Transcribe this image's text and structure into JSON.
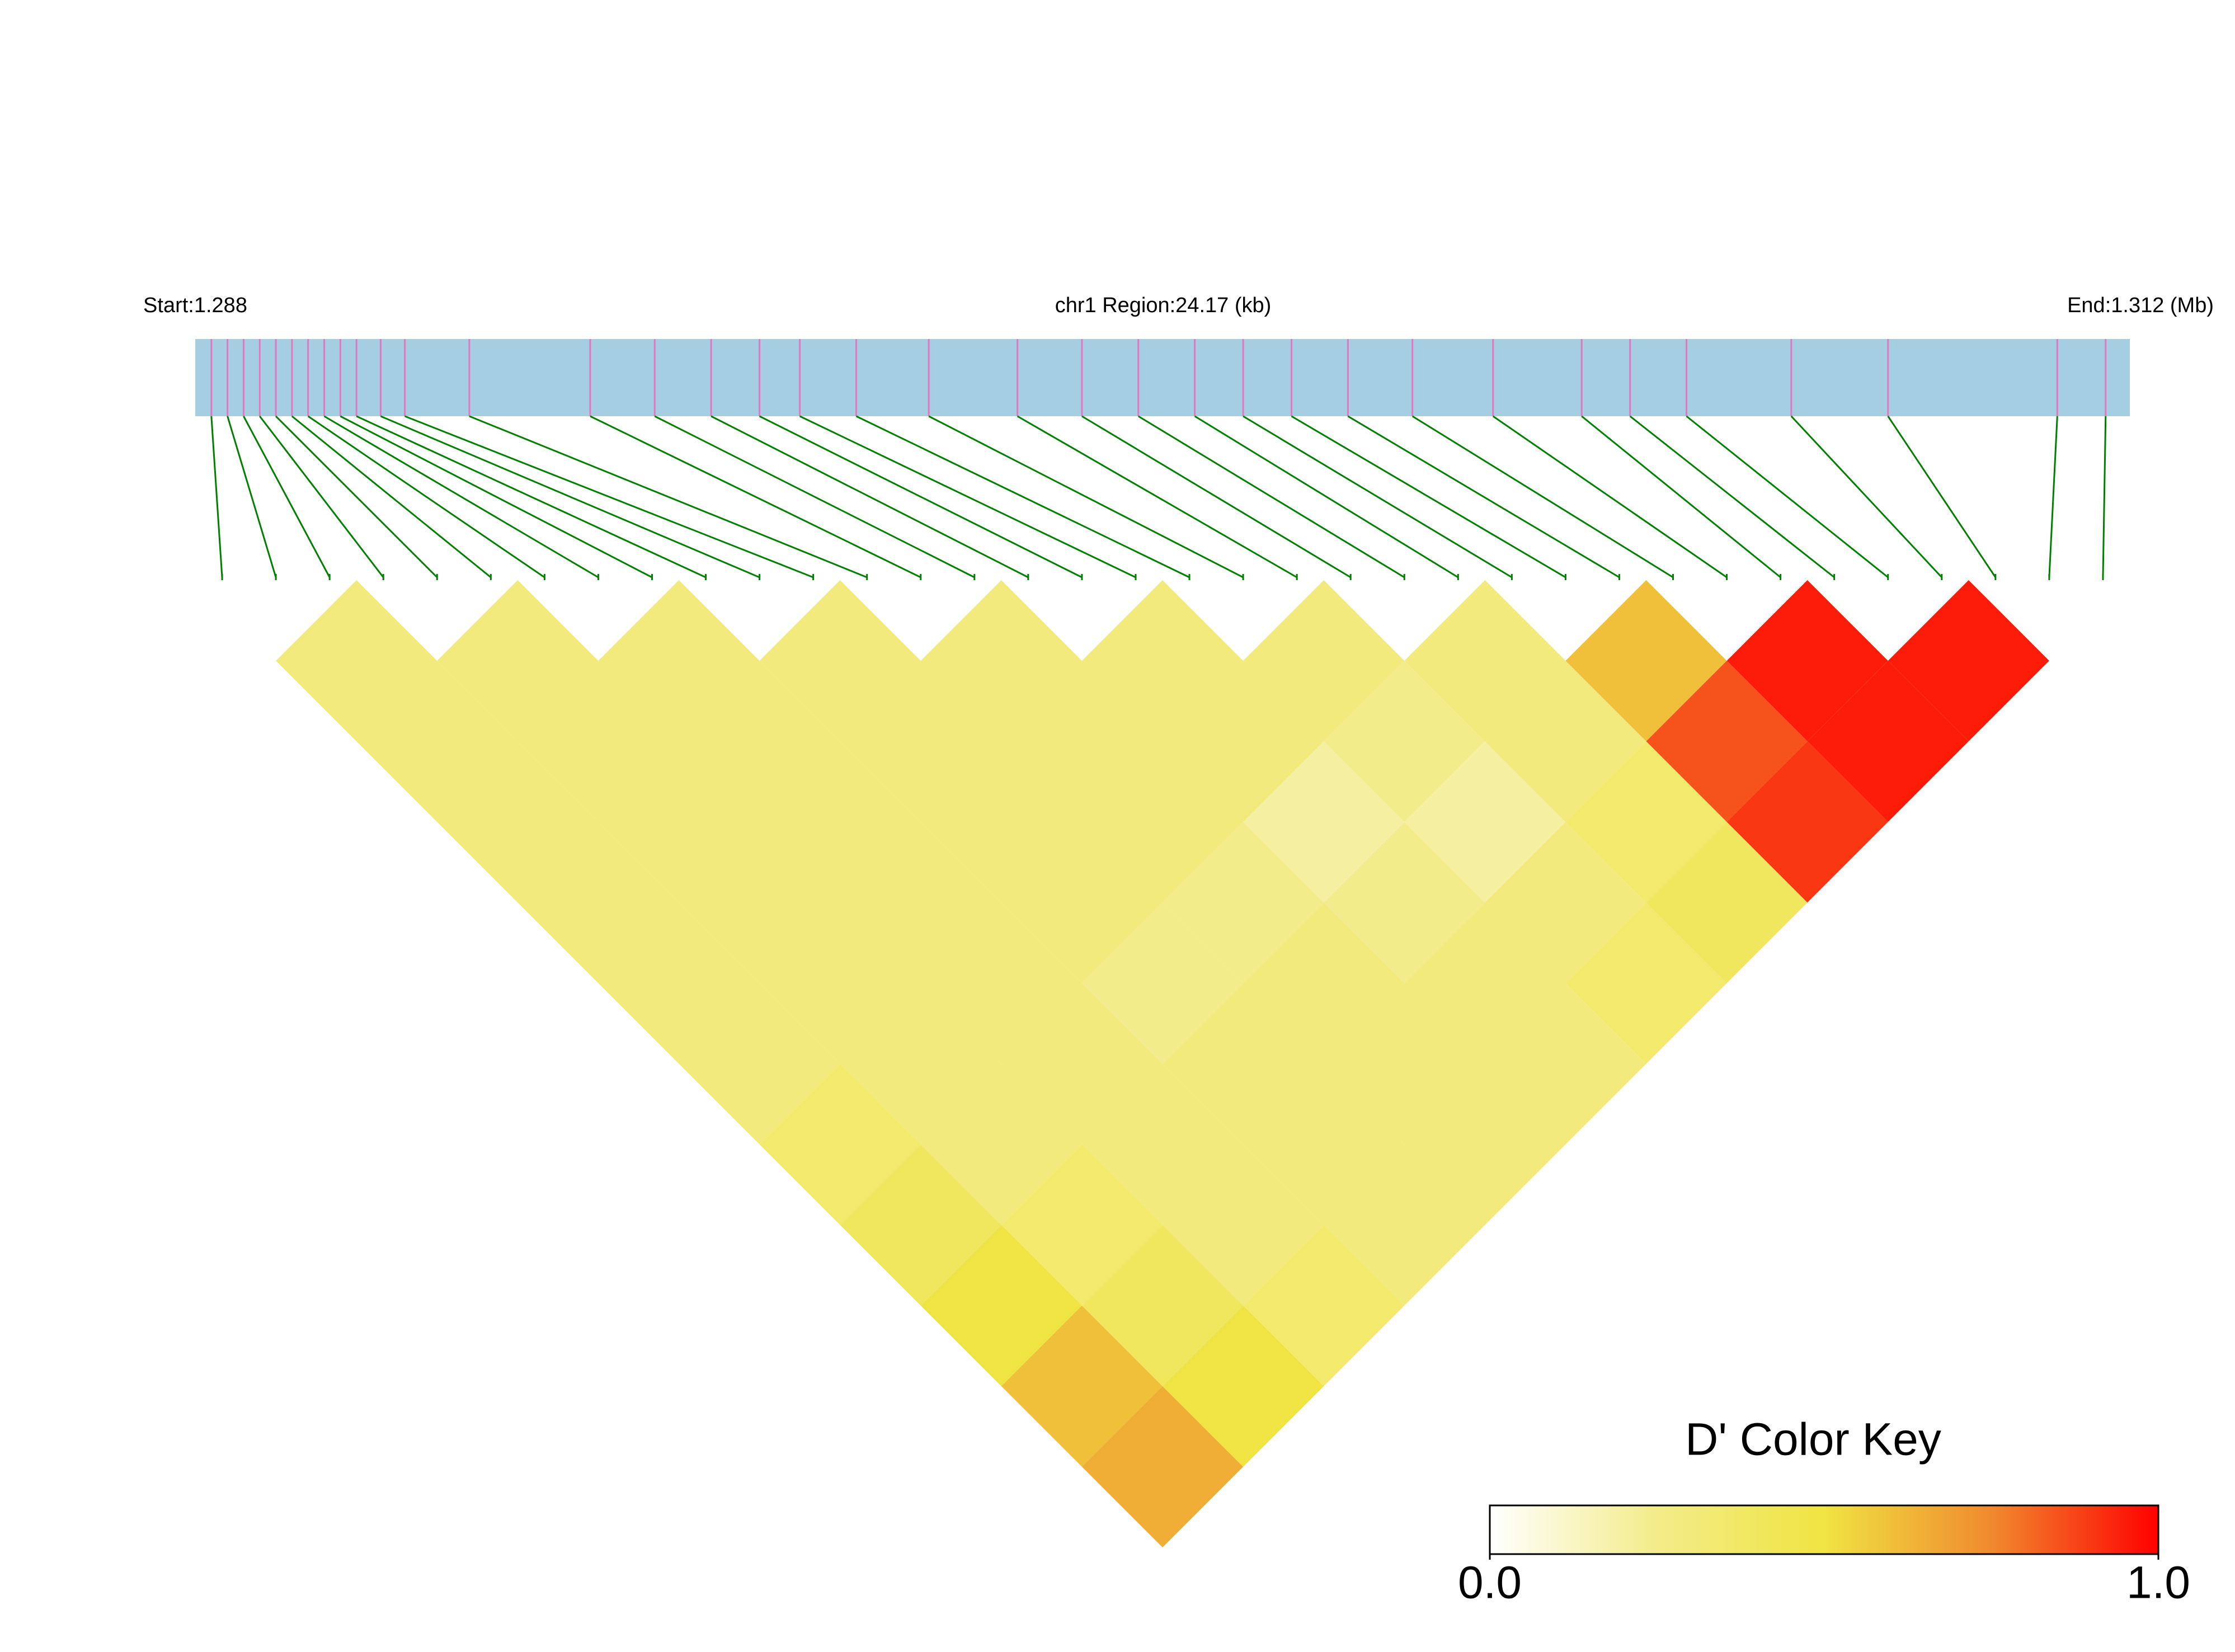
{
  "chart_data": {
    "type": "ld_heatmap",
    "start_label": "Start:1.288",
    "region_label": "chr1 Region:24.17 (kb)",
    "end_label": "End:1.312 (Mb)",
    "xlim": [
      1.288,
      1.312
    ],
    "snp_positions": [
      1.2882,
      1.2884,
      1.2886,
      1.2888,
      1.289,
      1.2892,
      1.2894,
      1.2896,
      1.2898,
      1.29,
      1.2903,
      1.2906,
      1.2914,
      1.2929,
      1.2937,
      1.2944,
      1.295,
      1.2955,
      1.2962,
      1.2971,
      1.2982,
      1.299,
      1.2997,
      1.3004,
      1.301,
      1.3016,
      1.3023,
      1.3031,
      1.3041,
      1.3052,
      1.3058,
      1.3065,
      1.3078,
      1.309,
      1.3111,
      1.3117
    ],
    "dprime": [
      [
        0.3,
        0.3,
        0.3,
        0.3,
        0.3,
        0.3,
        0.35,
        0.4,
        0.5,
        0.6,
        0.65
      ],
      [
        0.3,
        0.3,
        0.3,
        0.3,
        0.3,
        0.3,
        0.3,
        0.35,
        0.4,
        0.5
      ],
      [
        0.3,
        0.3,
        0.3,
        0.3,
        0.3,
        0.3,
        0.3,
        0.3,
        0.35
      ],
      [
        0.3,
        0.3,
        0.3,
        0.3,
        0.25,
        0.3,
        0.3,
        0.3
      ],
      [
        0.3,
        0.3,
        0.3,
        0.25,
        0.3,
        0.3,
        0.3
      ],
      [
        0.3,
        0.3,
        0.2,
        0.25,
        0.3,
        0.3
      ],
      [
        0.3,
        0.25,
        0.2,
        0.3,
        0.35
      ],
      [
        0.3,
        0.3,
        0.35,
        0.4
      ],
      [
        0.6,
        0.85,
        0.9
      ],
      [
        0.95,
        0.95
      ],
      [
        0.95
      ]
    ],
    "color_key": {
      "title": "D' Color Key",
      "lim": [
        0,
        1
      ],
      "colors": [
        "#ffffff",
        "#f3ec8a",
        "#f0e442",
        "#f08a2e",
        "#ff0000"
      ],
      "ticks": [
        {
          "value": 0,
          "label": "0.0"
        },
        {
          "value": 1,
          "label": "1.0"
        }
      ]
    }
  }
}
